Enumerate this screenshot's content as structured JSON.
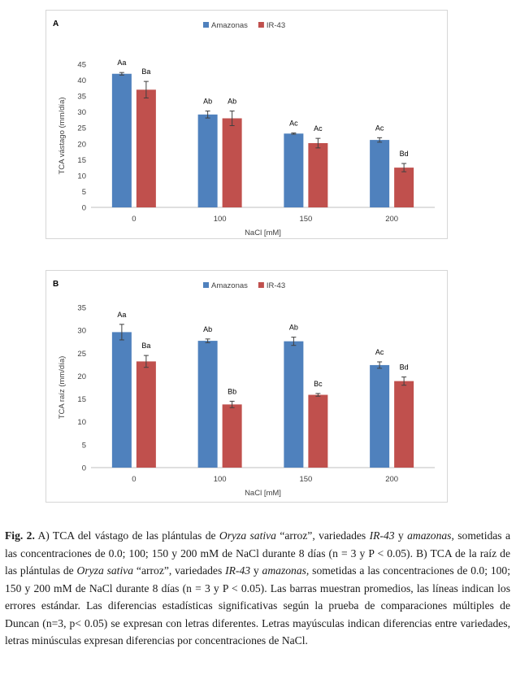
{
  "chart_data": [
    {
      "type": "bar",
      "panel_label": "A",
      "categories": [
        "0",
        "100",
        "150",
        "200"
      ],
      "series": [
        {
          "name": "Amazonas",
          "color": "#4f81bd",
          "values": [
            42.0,
            29.2,
            23.2,
            21.2
          ],
          "errors": [
            0.4,
            1.1,
            0.2,
            0.7
          ],
          "labels": [
            "Aa",
            "Ab",
            "Ac",
            "Ac"
          ]
        },
        {
          "name": "IR-43",
          "color": "#c0504d",
          "values": [
            37.0,
            28.0,
            20.2,
            12.5
          ],
          "errors": [
            2.6,
            2.3,
            1.5,
            1.3
          ],
          "labels": [
            "Ba",
            "Ab",
            "Ac",
            "Bd"
          ]
        }
      ],
      "xlabel": "NaCl [mM]",
      "ylabel": "TCA vástago (mm/día)",
      "ylim": [
        0,
        45
      ],
      "yticks": [
        0,
        5,
        10,
        15,
        20,
        25,
        30,
        35,
        40,
        45
      ],
      "legend": "top-center",
      "grid": false
    },
    {
      "type": "bar",
      "panel_label": "B",
      "categories": [
        "0",
        "100",
        "150",
        "200"
      ],
      "series": [
        {
          "name": "Amazonas",
          "color": "#4f81bd",
          "values": [
            29.6,
            27.7,
            27.6,
            22.4
          ],
          "errors": [
            1.7,
            0.4,
            0.9,
            0.7
          ],
          "labels": [
            "Aa",
            "Ab",
            "Ab",
            "Ac"
          ]
        },
        {
          "name": "IR-43",
          "color": "#c0504d",
          "values": [
            23.2,
            13.8,
            15.9,
            18.9
          ],
          "errors": [
            1.3,
            0.7,
            0.3,
            0.9
          ],
          "labels": [
            "Ba",
            "Bb",
            "Bc",
            "Bd"
          ]
        }
      ],
      "xlabel": "NaCl [mM]",
      "ylabel": "TCA raíz (mm/día)",
      "ylim": [
        0,
        35
      ],
      "yticks": [
        0,
        5,
        10,
        15,
        20,
        25,
        30,
        35
      ],
      "legend": "top-center",
      "grid": false
    }
  ],
  "caption": {
    "fig_label": "Fig. 2.",
    "part1": " A) TCA del vástago de las plántulas de ",
    "species1": "Oryza sativa",
    "part2": " “arroz”, variedades ",
    "variety1": "IR-43",
    "part3": " y ",
    "variety2": "amazonas,",
    "part4": " sometidas a las concentraciones de 0.0; 100; 150 y 200 mM de NaCl durante 8 días (n = 3 y P < 0.05). B) TCA de la raíz de las plántulas de ",
    "species2": "Oryza sativa",
    "part5": " “arroz”, variedades ",
    "variety3": "IR-43",
    "part6": " y ",
    "variety4": "amazonas,",
    "part7": " sometidas a las concentraciones de 0.0; 100; 150 y 200 mM de NaCl durante 8 días (n = 3 y P < 0.05). Las barras muestran promedios, las líneas indican los errores estándar. Las diferencias estadísticas significativas según la prueba de comparaciones múltiples de Duncan (n=3, p< 0.05) se expresan con letras diferentes. Letras mayúsculas indican diferencias entre variedades, letras minúsculas expresan diferencias por concentraciones de NaCl."
  }
}
